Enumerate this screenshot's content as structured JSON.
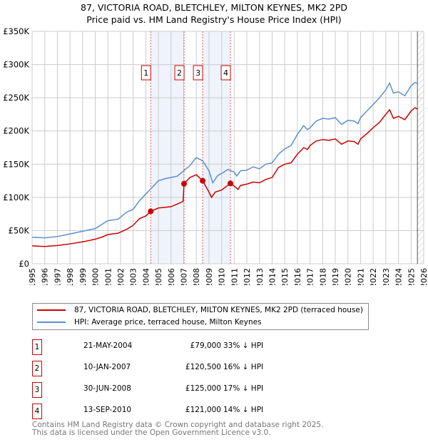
{
  "title": "87, VICTORIA ROAD, BLETCHLEY, MILTON KEYNES, MK2 2PD",
  "subtitle": "Price paid vs. HM Land Registry's House Price Index (HPI)",
  "chart_data": {
    "type": "line",
    "xlim": [
      1995,
      2026
    ],
    "ylim": [
      0,
      350000
    ],
    "xticks": [
      "1995",
      "1996",
      "1997",
      "1998",
      "1999",
      "2000",
      "2001",
      "2002",
      "2003",
      "2004",
      "2005",
      "2006",
      "2007",
      "2008",
      "2009",
      "2010",
      "2011",
      "2012",
      "2013",
      "2014",
      "2015",
      "2016",
      "2017",
      "2018",
      "2019",
      "2020",
      "2021",
      "2022",
      "2023",
      "2024",
      "2025",
      "2026"
    ],
    "yticks": [
      {
        "v": 0,
        "label": "£0"
      },
      {
        "v": 50000,
        "label": "£50K"
      },
      {
        "v": 100000,
        "label": "£100K"
      },
      {
        "v": 150000,
        "label": "£150K"
      },
      {
        "v": 200000,
        "label": "£200K"
      },
      {
        "v": 250000,
        "label": "£250K"
      },
      {
        "v": 300000,
        "label": "£300K"
      },
      {
        "v": 350000,
        "label": "£350K"
      }
    ],
    "grid": true,
    "shaded_ranges": [
      [
        2004.39,
        2007.03
      ],
      [
        2008.5,
        2010.7
      ]
    ],
    "hatched_from": 2025.5,
    "series": [
      {
        "name": "87, VICTORIA ROAD, BLETCHLEY, MILTON KEYNES, MK2 2PD (terraced house)",
        "color": "#cc0000",
        "x": [
          1995,
          1996,
          1997,
          1998,
          1999,
          2000,
          2000.5,
          2001,
          2001.8,
          2002.5,
          2003,
          2003.5,
          2004,
          2004.39,
          2005,
          2005.5,
          2006,
          2006.5,
          2006.95,
          2007.03,
          2007.5,
          2008,
          2008.5,
          2009,
          2009.2,
          2009.5,
          2010,
          2010.7,
          2011,
          2011.3,
          2011.5,
          2012,
          2012.5,
          2013,
          2013.5,
          2014,
          2014.5,
          2015,
          2015.5,
          2016,
          2016.5,
          2016.8,
          2017,
          2017.5,
          2018,
          2018.5,
          2019,
          2019.5,
          2020,
          2020.5,
          2020.8,
          2021,
          2021.5,
          2022,
          2022.5,
          2023,
          2023.3,
          2023.6,
          2024,
          2024.5,
          2025,
          2025.3,
          2025.5
        ],
        "y": [
          27000,
          26000,
          27500,
          30000,
          33000,
          37000,
          40000,
          44000,
          46000,
          52000,
          58000,
          68000,
          72000,
          79000,
          84000,
          85000,
          86000,
          90000,
          94000,
          120500,
          130000,
          134000,
          125000,
          108000,
          100000,
          108000,
          111000,
          121000,
          117000,
          112000,
          118000,
          120000,
          123000,
          122000,
          127000,
          130000,
          145000,
          150000,
          152000,
          165000,
          175000,
          172000,
          178000,
          185000,
          187000,
          186000,
          188000,
          180000,
          185000,
          184000,
          180000,
          188000,
          196000,
          205000,
          213000,
          225000,
          232000,
          219000,
          222000,
          217000,
          230000,
          235000,
          233000
        ]
      },
      {
        "name": "HPI: Average price, terraced house, Milton Keynes",
        "color": "#5b8fd4",
        "x": [
          1995,
          1996,
          1997,
          1998,
          1999,
          2000,
          2000.5,
          2001,
          2001.8,
          2002.5,
          2003,
          2003.5,
          2004,
          2004.5,
          2005,
          2005.5,
          2006,
          2006.5,
          2007,
          2007.5,
          2008,
          2008.5,
          2009,
          2009.3,
          2009.7,
          2010,
          2010.5,
          2011,
          2011.2,
          2011.5,
          2012,
          2012.5,
          2013,
          2013.5,
          2014,
          2014.5,
          2015,
          2015.5,
          2016,
          2016.5,
          2016.8,
          2017,
          2017.5,
          2018,
          2018.5,
          2019,
          2019.5,
          2020,
          2020.5,
          2020.8,
          2021,
          2021.5,
          2022,
          2022.5,
          2023,
          2023.3,
          2023.6,
          2024,
          2024.5,
          2025,
          2025.3,
          2025.5
        ],
        "y": [
          40000,
          39000,
          41000,
          45000,
          49000,
          53000,
          59000,
          65000,
          67000,
          78000,
          82000,
          95000,
          105000,
          115000,
          125000,
          128000,
          130000,
          132000,
          140000,
          148000,
          160000,
          155000,
          140000,
          122000,
          133000,
          136000,
          142000,
          138000,
          132000,
          140000,
          141000,
          146000,
          143000,
          150000,
          152000,
          165000,
          173000,
          178000,
          195000,
          208000,
          202000,
          205000,
          215000,
          219000,
          218000,
          220000,
          210000,
          216000,
          215000,
          211000,
          220000,
          230000,
          240000,
          250000,
          262000,
          272000,
          257000,
          259000,
          253000,
          268000,
          273000,
          272000
        ]
      }
    ],
    "sales": [
      {
        "n": "1",
        "x": 2004.39,
        "y": 79000,
        "date": "21-MAY-2004",
        "price": "£79,000",
        "hpi": "33% ↓ HPI"
      },
      {
        "n": "2",
        "x": 2007.03,
        "y": 120500,
        "date": "10-JAN-2007",
        "price": "£120,500",
        "hpi": "16% ↓ HPI"
      },
      {
        "n": "3",
        "x": 2008.5,
        "y": 125000,
        "date": "30-JUN-2008",
        "price": "£125,000",
        "hpi": "17% ↓ HPI"
      },
      {
        "n": "4",
        "x": 2010.7,
        "y": 121000,
        "date": "13-SEP-2010",
        "price": "£121,000",
        "hpi": "14% ↓ HPI"
      }
    ]
  },
  "legend": {
    "red": "87, VICTORIA ROAD, BLETCHLEY, MILTON KEYNES, MK2 2PD (terraced house)",
    "blue": "HPI: Average price, terraced house, Milton Keynes"
  },
  "footer": {
    "line1": "Contains HM Land Registry data © Crown copyright and database right 2025.",
    "line2": "This data is licensed under the Open Government Licence v3.0."
  }
}
